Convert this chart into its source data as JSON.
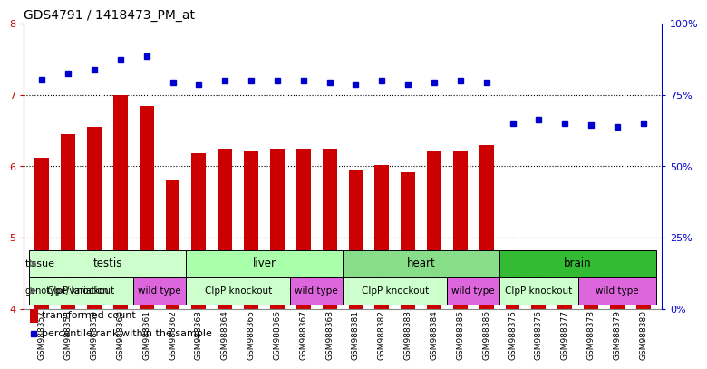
{
  "title": "GDS4791 / 1418473_PM_at",
  "samples": [
    "GSM988357",
    "GSM988358",
    "GSM988359",
    "GSM988360",
    "GSM988361",
    "GSM988362",
    "GSM988363",
    "GSM988364",
    "GSM988365",
    "GSM988366",
    "GSM988367",
    "GSM988368",
    "GSM988381",
    "GSM988382",
    "GSM988383",
    "GSM988384",
    "GSM988385",
    "GSM988386",
    "GSM988375",
    "GSM988376",
    "GSM988377",
    "GSM988378",
    "GSM988379",
    "GSM988380"
  ],
  "bar_values": [
    6.12,
    6.45,
    6.55,
    7.0,
    6.85,
    5.82,
    6.18,
    6.25,
    6.22,
    6.25,
    6.25,
    6.25,
    5.95,
    6.02,
    5.92,
    6.22,
    6.22,
    6.3,
    4.48,
    4.5,
    4.42,
    4.48,
    4.22,
    4.45
  ],
  "percentile_values": [
    7.22,
    7.3,
    7.35,
    7.5,
    7.55,
    7.18,
    7.15,
    7.2,
    7.2,
    7.2,
    7.2,
    7.18,
    7.15,
    7.2,
    7.15,
    7.18,
    7.2,
    7.18,
    6.6,
    6.65,
    6.6,
    6.58,
    6.55,
    6.6
  ],
  "bar_color": "#cc0000",
  "dot_color": "#0000cc",
  "ylim": [
    4.0,
    8.0
  ],
  "yticks": [
    4,
    5,
    6,
    7,
    8
  ],
  "y2ticks": [
    0,
    25,
    50,
    75,
    100
  ],
  "tissue_colors": {
    "testis": "#ccffcc",
    "liver": "#aaffaa",
    "heart": "#88dd88",
    "brain": "#33bb33"
  },
  "tissues": [
    {
      "label": "testis",
      "start": 0,
      "end": 6
    },
    {
      "label": "liver",
      "start": 6,
      "end": 12
    },
    {
      "label": "heart",
      "start": 12,
      "end": 18
    },
    {
      "label": "brain",
      "start": 18,
      "end": 24
    }
  ],
  "geno_colors": {
    "ClpP knockout": "#ccffcc",
    "wild type": "#dd66dd"
  },
  "genotypes": [
    {
      "label": "ClpP knockout",
      "start": 0,
      "end": 4
    },
    {
      "label": "wild type",
      "start": 4,
      "end": 6
    },
    {
      "label": "ClpP knockout",
      "start": 6,
      "end": 10
    },
    {
      "label": "wild type",
      "start": 10,
      "end": 12
    },
    {
      "label": "ClpP knockout",
      "start": 12,
      "end": 16
    },
    {
      "label": "wild type",
      "start": 16,
      "end": 18
    },
    {
      "label": "ClpP knockout",
      "start": 18,
      "end": 21
    },
    {
      "label": "wild type",
      "start": 21,
      "end": 24
    }
  ],
  "chart_bg": "#ffffff",
  "legend_bar_label": "transformed count",
  "legend_dot_label": "percentile rank within the sample",
  "tick_bg": "#d0d0d0"
}
